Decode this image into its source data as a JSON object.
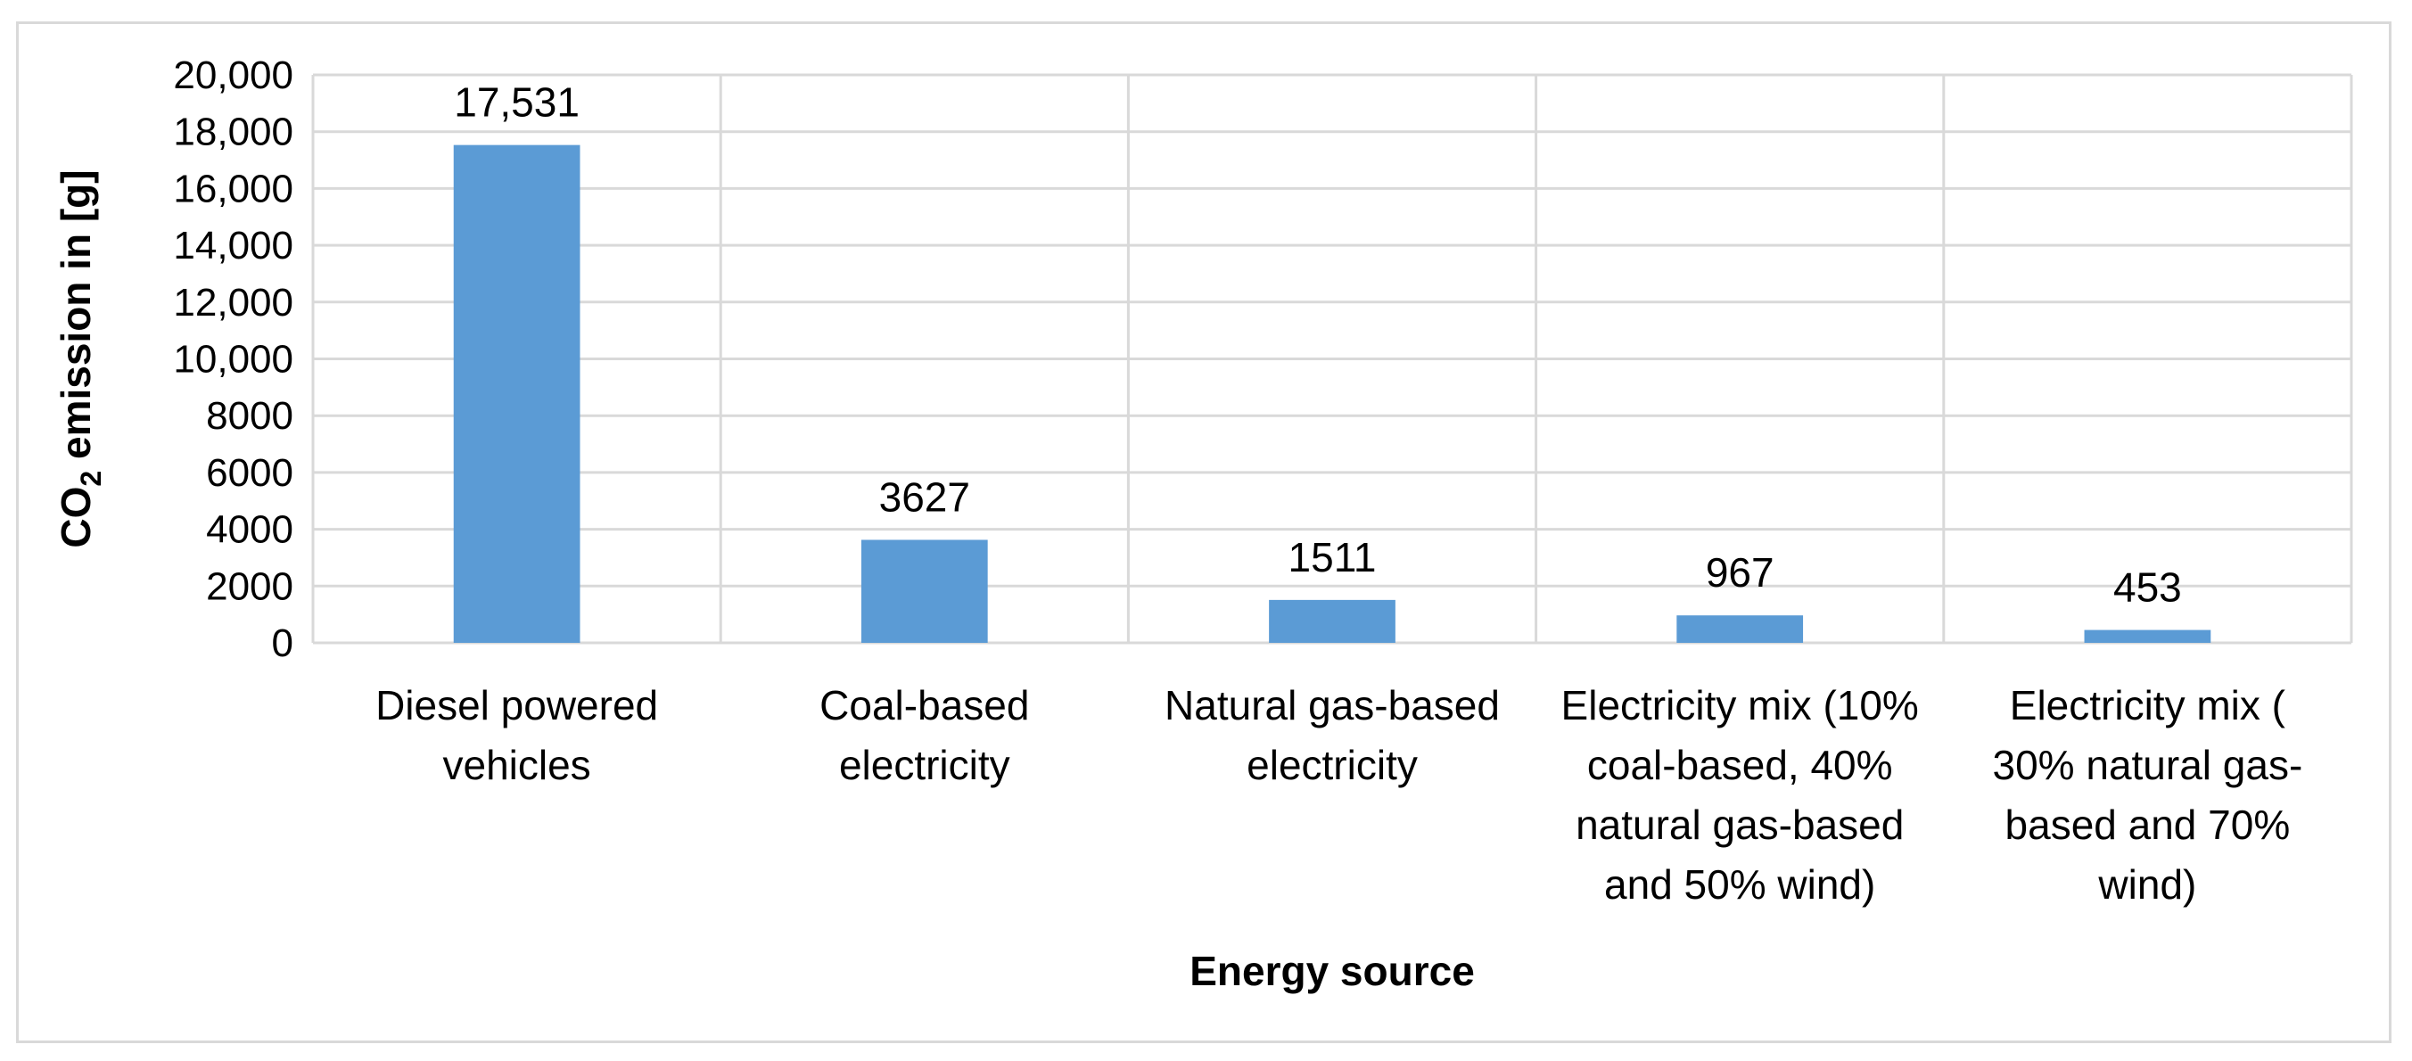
{
  "chart_data": {
    "type": "bar",
    "categories": [
      [
        "Diesel powered",
        "vehicles"
      ],
      [
        "Coal-based",
        "electricity"
      ],
      [
        "Natural gas-based",
        "electricity"
      ],
      [
        "Electricity mix (10%",
        "coal-based, 40%",
        "natural gas-based",
        "and 50% wind)"
      ],
      [
        "Electricity mix (",
        "30% natural gas-",
        "based and 70%",
        "wind)"
      ]
    ],
    "values": [
      17531,
      3627,
      1511,
      967,
      453
    ],
    "data_labels": [
      "17,531",
      "3627",
      "1511",
      "967",
      "453"
    ],
    "yticks": [
      0,
      2000,
      4000,
      6000,
      8000,
      10000,
      12000,
      14000,
      16000,
      18000,
      20000
    ],
    "ytick_labels": [
      "0",
      "2000",
      "4000",
      "6000",
      "8000",
      "10,000",
      "12,000",
      "14,000",
      "16,000",
      "18,000",
      "20,000"
    ],
    "ylim": [
      0,
      20000
    ],
    "xlabel": "Energy source",
    "ylabel_main": "CO",
    "ylabel_sub": "2",
    "ylabel_rest": " emission in [g]",
    "grid": true,
    "bar_color": "#5b9bd5",
    "grid_color": "#d9d9d9"
  }
}
